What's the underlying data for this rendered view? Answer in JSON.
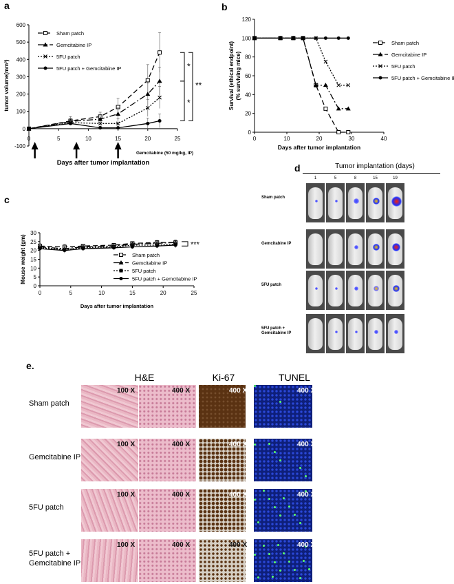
{
  "panel_letters": {
    "a": "a",
    "b": "b",
    "c": "c",
    "d": "d",
    "e": "e."
  },
  "chart_data": [
    {
      "panel": "a",
      "type": "line",
      "xlabel": "Days after tumor implantation",
      "ylabel": "tumor volume(mm³)",
      "xlim": [
        0,
        25
      ],
      "ylim": [
        -100,
        600
      ],
      "xticks": [
        0,
        5,
        10,
        15,
        20,
        25
      ],
      "yticks": [
        -100,
        0,
        100,
        200,
        300,
        400,
        500,
        600
      ],
      "x": [
        0,
        7,
        12,
        15,
        20,
        22
      ],
      "series": [
        {
          "name": "Sham patch",
          "marker": "open-square",
          "dash": "7,4",
          "values": [
            0,
            45,
            70,
            125,
            280,
            440
          ]
        },
        {
          "name": "Gemcitabine IP",
          "marker": "triangle",
          "dash": "9,3,2,3",
          "values": [
            0,
            42,
            55,
            85,
            200,
            275
          ]
        },
        {
          "name": "5FU patch",
          "marker": "x",
          "dash": "2,2",
          "values": [
            0,
            35,
            30,
            30,
            120,
            180
          ]
        },
        {
          "name": "5FU patch + Gemcitabine IP",
          "marker": "circle",
          "dash": "",
          "values": [
            0,
            30,
            5,
            5,
            30,
            45
          ]
        }
      ],
      "error": [
        0,
        25,
        25,
        50,
        90,
        115
      ],
      "annotation": "Gemcitabine (50 mg/kg, IP)",
      "arrows_at_day": [
        1,
        8,
        15
      ],
      "significance": [
        "*",
        "**",
        "*"
      ],
      "legend_placement": "top-left"
    },
    {
      "panel": "b",
      "type": "line",
      "xlabel": "Days after tumor implantation",
      "ylabel": "Survival (ethical endpoint)",
      "ylabel2": "(% surviving mice)",
      "xlim": [
        0,
        40
      ],
      "ylim": [
        0,
        120
      ],
      "xticks": [
        0,
        10,
        20,
        30,
        40
      ],
      "yticks": [
        0,
        20,
        40,
        60,
        80,
        100,
        120
      ],
      "series": [
        {
          "name": "Sham patch",
          "marker": "open-square",
          "dash": "7,4",
          "x": [
            0,
            8,
            12,
            15,
            19,
            22,
            26,
            29
          ],
          "values": [
            100,
            100,
            100,
            100,
            50,
            25,
            0,
            0
          ]
        },
        {
          "name": "Gemcitabine IP",
          "marker": "triangle",
          "dash": "9,3,2,3",
          "x": [
            0,
            8,
            12,
            15,
            19,
            22,
            26,
            29
          ],
          "values": [
            100,
            100,
            100,
            100,
            50,
            50,
            25,
            25
          ]
        },
        {
          "name": "5FU patch",
          "marker": "x",
          "dash": "2,2",
          "x": [
            0,
            8,
            12,
            15,
            19,
            22,
            26,
            29
          ],
          "values": [
            100,
            100,
            100,
            100,
            100,
            75,
            50,
            50
          ]
        },
        {
          "name": "5FU patch + Gemcitabine IP",
          "marker": "circle",
          "dash": "",
          "x": [
            0,
            8,
            12,
            15,
            19,
            22,
            26,
            29
          ],
          "values": [
            100,
            100,
            100,
            100,
            100,
            100,
            100,
            100
          ]
        }
      ],
      "legend_placement": "right"
    },
    {
      "panel": "c",
      "type": "line",
      "xlabel": "Days after tumor implantation",
      "ylabel": "Mouse weight (gm)",
      "xlim": [
        0,
        25
      ],
      "ylim": [
        0,
        30
      ],
      "xticks": [
        0,
        5,
        10,
        15,
        20,
        25
      ],
      "yticks": [
        0,
        5,
        10,
        15,
        20,
        25,
        30
      ],
      "x": [
        0,
        4,
        7,
        12,
        15,
        19,
        22
      ],
      "series": [
        {
          "name": "Sham patch",
          "marker": "open-square",
          "dash": "7,4",
          "values": [
            22.5,
            22,
            22.5,
            23,
            24,
            24.5,
            24.5
          ]
        },
        {
          "name": "Gemcitabine IP",
          "marker": "triangle",
          "dash": "9,3,2,3",
          "values": [
            22,
            21,
            22,
            22.5,
            23.5,
            24,
            24.5
          ]
        },
        {
          "name": "5FU patch",
          "marker": "square",
          "dash": "2,2",
          "values": [
            21.5,
            20.5,
            21.5,
            22,
            23,
            23,
            23.5
          ]
        },
        {
          "name": "5FU patch + Gemcitabine IP",
          "marker": "circle",
          "dash": "",
          "values": [
            21,
            20,
            21,
            21.5,
            22,
            22.5,
            23
          ]
        }
      ],
      "error": [
        1.5,
        1.5,
        1,
        1,
        1,
        1.2,
        1.5
      ],
      "significance": "***",
      "legend_placement": "bottom-right"
    }
  ],
  "panel_d": {
    "header": "Tumor implantation (days)",
    "days": [
      "1",
      "5",
      "8",
      "15",
      "19"
    ],
    "rows": [
      {
        "label": "Sham patch",
        "signal": [
          0.15,
          0.15,
          0.35,
          0.6,
          1.0
        ]
      },
      {
        "label": "Gemcitabine IP",
        "signal": [
          0.0,
          0.0,
          0.2,
          0.55,
          0.75
        ]
      },
      {
        "label": "5FU patch",
        "signal": [
          0.1,
          0.15,
          0.3,
          0.45,
          0.55
        ]
      },
      {
        "label": "5FU patch +\nGemcitabine IP",
        "signal": [
          0.0,
          0.1,
          0.1,
          0.2,
          0.2
        ]
      }
    ]
  },
  "panel_e": {
    "columns": {
      "he": "H&E",
      "ki67": "Ki-67",
      "tunel": "TUNEL"
    },
    "mag_low": "100 X",
    "mag_high": "400 X",
    "rows": [
      {
        "label": "Sham patch",
        "ki67_density": 0.9,
        "tunel_density": 0.05
      },
      {
        "label": "Gemcitabine IP",
        "ki67_density": 0.55,
        "tunel_density": 0.2
      },
      {
        "label": "5FU patch",
        "ki67_density": 0.5,
        "tunel_density": 0.35
      },
      {
        "label": "5FU patch +\nGemcitabine IP",
        "ki67_density": 0.25,
        "tunel_density": 0.5
      }
    ],
    "colors": {
      "he_pink": "#e6a8b6",
      "ki_brown": "#5a3212",
      "tunel_blue": "#0e1f7a",
      "tunel_green": "#5cff6a"
    }
  }
}
